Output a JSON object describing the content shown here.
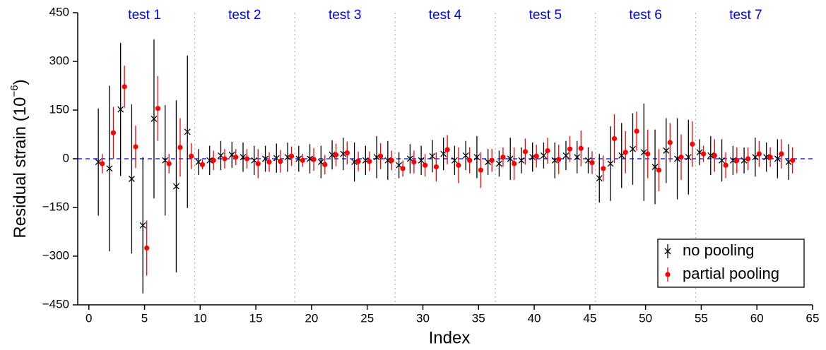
{
  "chart_data": {
    "type": "errorbar",
    "xlabel": "Index",
    "ylabel": {
      "text": "Residual strain (10",
      "sup": "−6",
      "end": ")"
    },
    "xlim": [
      -1,
      65
    ],
    "ylim": [
      -450,
      450
    ],
    "xticks": [
      0,
      5,
      10,
      15,
      20,
      25,
      30,
      35,
      40,
      45,
      50,
      55,
      60,
      65
    ],
    "yticks": [
      {
        "value": -450,
        "label": "−450"
      },
      {
        "value": -300,
        "label": "−300"
      },
      {
        "value": -150,
        "label": "−150"
      },
      0,
      150,
      300,
      450
    ],
    "hline": {
      "value": 0,
      "color": "#0000dd"
    },
    "groups": [
      {
        "label": "test 1",
        "from": 0.5,
        "to": 9.5
      },
      {
        "label": "test 2",
        "from": 9.5,
        "to": 18.5
      },
      {
        "label": "test 3",
        "from": 18.5,
        "to": 27.5
      },
      {
        "label": "test 4",
        "from": 27.5,
        "to": 36.5
      },
      {
        "label": "test 5",
        "from": 36.5,
        "to": 45.5
      },
      {
        "label": "test 6",
        "from": 45.5,
        "to": 54.5
      },
      {
        "label": "test 7",
        "from": 54.5,
        "to": 63.5
      }
    ],
    "legend": "lower right",
    "x": [
      1,
      2,
      3,
      4,
      5,
      6,
      7,
      8,
      9,
      10,
      11,
      12,
      13,
      14,
      15,
      16,
      17,
      18,
      19,
      20,
      21,
      22,
      23,
      24,
      25,
      26,
      27,
      28,
      29,
      30,
      31,
      32,
      33,
      34,
      35,
      36,
      37,
      38,
      39,
      40,
      41,
      42,
      43,
      44,
      45,
      46,
      47,
      48,
      49,
      50,
      51,
      52,
      53,
      54,
      55,
      56,
      57,
      58,
      59,
      60,
      61,
      62,
      63
    ],
    "series": [
      {
        "name": "no pooling",
        "color": "#000000",
        "marker": "x",
        "values": [
          -10,
          -30,
          152,
          -62,
          -205,
          123,
          -5,
          -85,
          83,
          -10,
          -5,
          10,
          12,
          5,
          -5,
          0,
          2,
          5,
          0,
          0,
          -10,
          12,
          15,
          -10,
          -5,
          5,
          -5,
          -20,
          0,
          -5,
          8,
          15,
          -5,
          10,
          5,
          -10,
          -15,
          0,
          -5,
          5,
          10,
          -5,
          10,
          5,
          -5,
          -60,
          -15,
          10,
          30,
          20,
          -25,
          25,
          0,
          5,
          20,
          10,
          -5,
          -5,
          -5,
          5,
          5,
          0,
          -10
        ],
        "errors": [
          165,
          255,
          205,
          230,
          210,
          245,
          170,
          265,
          235,
          40,
          45,
          45,
          40,
          45,
          45,
          40,
          45,
          45,
          40,
          45,
          50,
          45,
          50,
          60,
          45,
          65,
          60,
          40,
          45,
          45,
          50,
          50,
          45,
          45,
          65,
          40,
          40,
          65,
          40,
          45,
          40,
          55,
          45,
          50,
          40,
          75,
          115,
          100,
          110,
          150,
          115,
          100,
          125,
          115,
          40,
          60,
          65,
          45,
          40,
          60,
          45,
          60,
          55
        ]
      },
      {
        "name": "partial pooling",
        "color": "#ff0000",
        "marker": "o",
        "values": [
          -15,
          80,
          222,
          37,
          -275,
          155,
          -15,
          35,
          8,
          -18,
          -5,
          0,
          5,
          0,
          -15,
          -10,
          -8,
          8,
          -5,
          -2,
          -18,
          12,
          18,
          -8,
          -8,
          8,
          -5,
          -30,
          -10,
          -20,
          -25,
          28,
          -20,
          -5,
          -35,
          -5,
          5,
          -15,
          22,
          8,
          25,
          -2,
          30,
          32,
          -12,
          -30,
          62,
          20,
          85,
          15,
          -35,
          50,
          5,
          45,
          15,
          10,
          -20,
          -5,
          0,
          15,
          5,
          15,
          -5
        ],
        "errors": [
          30,
          80,
          65,
          65,
          85,
          100,
          30,
          90,
          40,
          15,
          30,
          30,
          25,
          30,
          45,
          30,
          35,
          30,
          20,
          35,
          30,
          35,
          35,
          30,
          30,
          40,
          30,
          25,
          35,
          35,
          45,
          45,
          55,
          40,
          55,
          35,
          30,
          50,
          40,
          35,
          40,
          45,
          40,
          55,
          35,
          40,
          75,
          65,
          60,
          75,
          65,
          60,
          70,
          70,
          25,
          50,
          40,
          40,
          35,
          40,
          30,
          45,
          40
        ]
      }
    ]
  }
}
